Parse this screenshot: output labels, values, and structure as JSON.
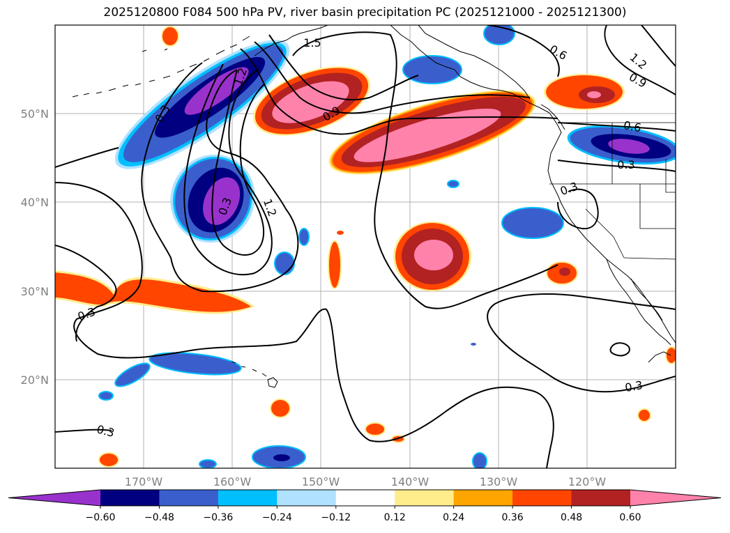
{
  "title": "2025120800 F084 500 hPa PV, river basin precipitation PC (2025121000 - 2025121300)",
  "lat_labels": [
    "50°N",
    "40°N",
    "30°N",
    "20°N"
  ],
  "lon_labels": [
    "170°W",
    "160°W",
    "150°W",
    "140°W",
    "130°W",
    "120°W"
  ],
  "contour_labels": [
    "1.5",
    "0.6",
    "1.2",
    "0.9",
    "0.3",
    "1.2",
    "0.9",
    "0.6",
    "0.3",
    "0.3",
    "1.2",
    "0.3",
    "0.3",
    "0.3",
    "0.3"
  ],
  "colorbar": {
    "tick_labels": [
      "−0.60",
      "−0.48",
      "−0.36",
      "−0.24",
      "−0.12",
      "0.12",
      "0.24",
      "0.36",
      "0.48",
      "0.60"
    ],
    "colors": [
      "#9932cc",
      "#000080",
      "#3a5fcd",
      "#00bfff",
      "#b0e2ff",
      "#ffffff",
      "#ffec8b",
      "#ffa500",
      "#ff4500",
      "#b22222",
      "#ff82ab"
    ]
  },
  "map_colors": {
    "purple": "#9932cc",
    "navy": "#000080",
    "blue": "#3a5fcd",
    "cyan": "#00bfff",
    "lightblue": "#b0e2ff",
    "yellow": "#ffec8b",
    "orange": "#ffa500",
    "redorange": "#ff4500",
    "firebrick": "#b22222",
    "pink": "#ff82ab"
  }
}
